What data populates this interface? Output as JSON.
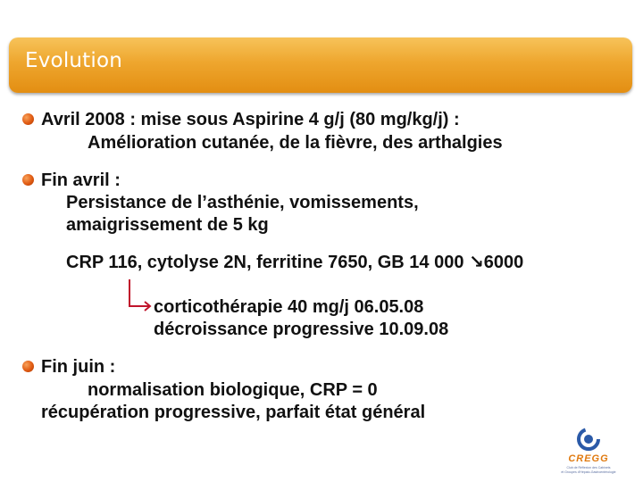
{
  "title": "Evolution",
  "bullets": [
    {
      "head": "Avril 2008 : mise sous Aspirine 4 g/j (80 mg/kg/j) :",
      "body": "Amélioration cutanée, de la fièvre, des arthalgies"
    },
    {
      "head": "Fin avril  :",
      "body1": "Persistance de l’asthénie, vomissements,",
      "body2": "amaigrissement de 5 kg"
    },
    {
      "head": "Fin juin :",
      "body1": "normalisation biologique, CRP = 0",
      "body2": "récupération progressive, parfait état général"
    }
  ],
  "crp_line": "CRP 116, cytolyse 2N, ferritine 7650, GB 14 000 ↘6000",
  "treatment": {
    "line1": "corticothérapie 40 mg/j   06.05.08",
    "line2": "décroissance progressive 10.09.08"
  },
  "logo": {
    "name": "CREGG",
    "subtitle1": "Club de Réflexion des Cabinets",
    "subtitle2": "et Groupes d'Hépato-Gastroentérologie"
  },
  "colors": {
    "title_bar": "#eea62e",
    "bullet": "#e05a12",
    "arrow": "#c0142b",
    "logo_blue": "#2b5aa8",
    "logo_orange": "#e07a10"
  }
}
